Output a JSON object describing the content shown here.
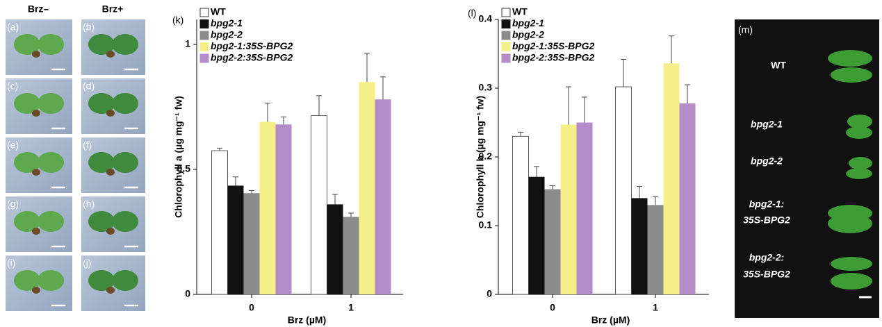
{
  "photo_panels": {
    "columns": [
      "Brz–",
      "Brz+"
    ],
    "labels": [
      "(a)",
      "(b)",
      "(c)",
      "(d)",
      "(e)",
      "(f)",
      "(g)",
      "(h)",
      "(i)",
      "(j)"
    ]
  },
  "chart_data": [
    {
      "type": "bar",
      "panel": "(k)",
      "y_label": "Chlorophyll a (µg mg⁻¹ fw)",
      "x_label": "Brz (µM)",
      "categories": [
        "0",
        "1"
      ],
      "ylim": [
        0,
        1.1
      ],
      "yticks": [
        0,
        0.5,
        1
      ],
      "series": [
        {
          "name": "WT",
          "color": "#ffffff",
          "values": [
            0.575,
            0.715
          ],
          "errors": [
            0.01,
            0.08
          ]
        },
        {
          "name": "bpg2-1",
          "color": "#111111",
          "values": [
            0.435,
            0.36
          ],
          "errors": [
            0.035,
            0.04
          ]
        },
        {
          "name": "bpg2-2",
          "color": "#8c8c8c",
          "values": [
            0.405,
            0.31
          ],
          "errors": [
            0.01,
            0.015
          ]
        },
        {
          "name": "bpg2-1:35S-BPG2",
          "color": "#f5f08a",
          "values": [
            0.69,
            0.85
          ],
          "errors": [
            0.075,
            0.115
          ]
        },
        {
          "name": "bpg2-2:35S-BPG2",
          "color": "#b48cc8",
          "values": [
            0.68,
            0.78
          ],
          "errors": [
            0.03,
            0.09
          ]
        }
      ]
    },
    {
      "type": "bar",
      "panel": "(l)",
      "y_label": "Chlorophyll b (µg mg⁻¹ fw)",
      "x_label": "Brz (µM)",
      "categories": [
        "0",
        "1"
      ],
      "ylim": [
        0,
        0.4
      ],
      "yticks": [
        0,
        0.1,
        0.2,
        0.3,
        0.4
      ],
      "series": [
        {
          "name": "WT",
          "color": "#ffffff",
          "values": [
            0.23,
            0.302
          ],
          "errors": [
            0.006,
            0.04
          ]
        },
        {
          "name": "bpg2-1",
          "color": "#111111",
          "values": [
            0.171,
            0.14
          ],
          "errors": [
            0.015,
            0.017
          ]
        },
        {
          "name": "bpg2-2",
          "color": "#8c8c8c",
          "values": [
            0.153,
            0.13
          ],
          "errors": [
            0.005,
            0.012
          ]
        },
        {
          "name": "bpg2-1:35S-BPG2",
          "color": "#f5f08a",
          "values": [
            0.247,
            0.336
          ],
          "errors": [
            0.055,
            0.04
          ]
        },
        {
          "name": "bpg2-2:35S-BPG2",
          "color": "#b48cc8",
          "values": [
            0.25,
            0.278
          ],
          "errors": [
            0.037,
            0.027
          ]
        }
      ]
    }
  ],
  "leaf_panel": {
    "label": "(m)",
    "genotypes": [
      [
        "WT"
      ],
      [
        "bpg2-1"
      ],
      [
        "bpg2-2"
      ],
      [
        "bpg2-1:",
        "35S-BPG2"
      ],
      [
        "bpg2-2:",
        "35S-BPG2"
      ]
    ]
  }
}
